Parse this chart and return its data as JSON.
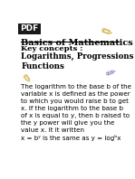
{
  "bg_color": "#ffffff",
  "pdf_label": "PDF",
  "pdf_bg": "#1a1a1a",
  "title": "Basics of Mathematics",
  "key_concepts_label": "Key concepts :",
  "subtitle": "Logarithms, Progressions –\nFunctions",
  "body_text_lines": [
    "The logarithm to the base b of the",
    "variable x is defined as the power",
    "to which you would raise b to get",
    "x. If the logarithm to the base b",
    "of x is equal to y, then b raised to",
    "the y power will give you the",
    "value x. It it written",
    "x = bʸ is the same as y = logᵇx"
  ]
}
